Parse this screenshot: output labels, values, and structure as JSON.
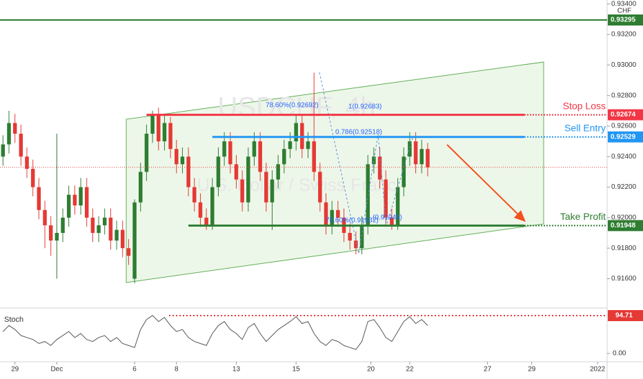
{
  "chart_data": {
    "type": "candlestick",
    "currency_label": "CHF",
    "watermark": {
      "symbol": "USDCHF, 4h",
      "name": "U.S. Dollar / Swiss Franc"
    },
    "ylim": [
      0.91417,
      0.93426
    ],
    "yticks": [
      {
        "value": 0.934,
        "label": "0.93400"
      },
      {
        "value": 0.932,
        "label": "0.93200"
      },
      {
        "value": 0.93,
        "label": "0.93000"
      },
      {
        "value": 0.928,
        "label": "0.92800"
      },
      {
        "value": 0.926,
        "label": "0.92600"
      },
      {
        "value": 0.924,
        "label": "0.92400"
      },
      {
        "value": 0.922,
        "label": "0.92200"
      },
      {
        "value": 0.92,
        "label": "0.92000"
      },
      {
        "value": 0.918,
        "label": "0.91800"
      },
      {
        "value": 0.916,
        "label": "0.91600"
      }
    ],
    "xlim": [
      -0.5,
      101
    ],
    "xticks": [
      {
        "value": 2,
        "label": "29"
      },
      {
        "value": 9,
        "label": "Dec"
      },
      {
        "value": 22,
        "label": "6"
      },
      {
        "value": 29,
        "label": "8"
      },
      {
        "value": 39,
        "label": "13"
      },
      {
        "value": 49,
        "label": "15"
      },
      {
        "value": 61.5,
        "label": "20"
      },
      {
        "value": 68,
        "label": "22"
      },
      {
        "value": 81,
        "label": "27"
      },
      {
        "value": 88.4,
        "label": "29"
      },
      {
        "value": 99.4,
        "label": "2022"
      }
    ],
    "up_color": "#2e7d32",
    "down_color": "#e53935",
    "candles": [
      [
        0.924,
        0.9254,
        0.9234,
        0.9248
      ],
      [
        0.9248,
        0.927,
        0.9242,
        0.9262
      ],
      [
        0.9262,
        0.9268,
        0.9249,
        0.9255
      ],
      [
        0.9255,
        0.9261,
        0.9234,
        0.924
      ],
      [
        0.924,
        0.9246,
        0.9226,
        0.9232
      ],
      [
        0.9232,
        0.9238,
        0.9214,
        0.922
      ],
      [
        0.922,
        0.9226,
        0.9199,
        0.9205
      ],
      [
        0.9205,
        0.9211,
        0.918,
        0.9195
      ],
      [
        0.9195,
        0.9201,
        0.9175,
        0.9185
      ],
      [
        0.9185,
        0.9255,
        0.916,
        0.919
      ],
      [
        0.919,
        0.9206,
        0.9184,
        0.92
      ],
      [
        0.92,
        0.9221,
        0.9194,
        0.9215
      ],
      [
        0.9215,
        0.9221,
        0.9202,
        0.9208
      ],
      [
        0.9208,
        0.9226,
        0.9202,
        0.922
      ],
      [
        0.922,
        0.9226,
        0.9194,
        0.92
      ],
      [
        0.92,
        0.9206,
        0.9184,
        0.919
      ],
      [
        0.919,
        0.9201,
        0.9184,
        0.9195
      ],
      [
        0.9195,
        0.9206,
        0.9189,
        0.92
      ],
      [
        0.92,
        0.9206,
        0.9179,
        0.9185
      ],
      [
        0.9185,
        0.9198,
        0.9179,
        0.9192
      ],
      [
        0.9192,
        0.9198,
        0.9174,
        0.918
      ],
      [
        0.918,
        0.9186,
        0.9169,
        0.9175
      ],
      [
        0.916,
        0.9212,
        0.9157,
        0.921
      ],
      [
        0.921,
        0.9236,
        0.9204,
        0.923
      ],
      [
        0.923,
        0.9261,
        0.9224,
        0.9255
      ],
      [
        0.9255,
        0.927,
        0.9249,
        0.9268
      ],
      [
        0.9268,
        0.9272,
        0.9244,
        0.925
      ],
      [
        0.925,
        0.9268,
        0.9244,
        0.9262
      ],
      [
        0.9262,
        0.9266,
        0.9239,
        0.9245
      ],
      [
        0.9245,
        0.9251,
        0.9229,
        0.9235
      ],
      [
        0.9235,
        0.9246,
        0.9229,
        0.924
      ],
      [
        0.924,
        0.9246,
        0.9214,
        0.922
      ],
      [
        0.922,
        0.9226,
        0.9204,
        0.921
      ],
      [
        0.921,
        0.9216,
        0.9194,
        0.92
      ],
      [
        0.92,
        0.9206,
        0.9192,
        0.9195
      ],
      [
        0.9195,
        0.9226,
        0.9192,
        0.922
      ],
      [
        0.922,
        0.9246,
        0.9214,
        0.924
      ],
      [
        0.924,
        0.9256,
        0.9234,
        0.925
      ],
      [
        0.925,
        0.9256,
        0.9229,
        0.9235
      ],
      [
        0.9235,
        0.9241,
        0.9219,
        0.9225
      ],
      [
        0.9225,
        0.9231,
        0.9204,
        0.921
      ],
      [
        0.921,
        0.9246,
        0.9204,
        0.924
      ],
      [
        0.924,
        0.9256,
        0.9234,
        0.925
      ],
      [
        0.925,
        0.9256,
        0.9224,
        0.923
      ],
      [
        0.923,
        0.9236,
        0.9204,
        0.921
      ],
      [
        0.921,
        0.9231,
        0.9192,
        0.9225
      ],
      [
        0.9225,
        0.9241,
        0.9219,
        0.9235
      ],
      [
        0.9235,
        0.9251,
        0.9229,
        0.9245
      ],
      [
        0.9245,
        0.9256,
        0.9239,
        0.925
      ],
      [
        0.925,
        0.9268,
        0.9244,
        0.9262
      ],
      [
        0.9262,
        0.9268,
        0.9239,
        0.9245
      ],
      [
        0.9245,
        0.9256,
        0.9239,
        0.925
      ],
      [
        0.925,
        0.9295,
        0.9224,
        0.923
      ],
      [
        0.923,
        0.9236,
        0.9204,
        0.921
      ],
      [
        0.921,
        0.9216,
        0.9189,
        0.9195
      ],
      [
        0.9195,
        0.9211,
        0.9189,
        0.9205
      ],
      [
        0.9205,
        0.9211,
        0.9194,
        0.92
      ],
      [
        0.92,
        0.9206,
        0.9184,
        0.919
      ],
      [
        0.919,
        0.9196,
        0.9179,
        0.9185
      ],
      [
        0.9185,
        0.9191,
        0.9176,
        0.918
      ],
      [
        0.918,
        0.9201,
        0.9176,
        0.9195
      ],
      [
        0.9195,
        0.9241,
        0.9189,
        0.9235
      ],
      [
        0.9235,
        0.9246,
        0.9229,
        0.924
      ],
      [
        0.924,
        0.9246,
        0.9219,
        0.9225
      ],
      [
        0.9225,
        0.9231,
        0.9194,
        0.92
      ],
      [
        0.92,
        0.9206,
        0.9192,
        0.9195
      ],
      [
        0.9195,
        0.9226,
        0.9192,
        0.922
      ],
      [
        0.922,
        0.9246,
        0.9214,
        0.924
      ],
      [
        0.924,
        0.9256,
        0.9234,
        0.925
      ],
      [
        0.925,
        0.9256,
        0.9229,
        0.9235
      ],
      [
        0.9235,
        0.9251,
        0.9229,
        0.9245
      ],
      [
        0.9245,
        0.9249,
        0.9227,
        0.9233
      ]
    ],
    "top_level": {
      "value": 0.93295,
      "color": "#2e7d32"
    },
    "levels": [
      {
        "label": "Stop Loss",
        "value": 0.92674,
        "color": "#f23645",
        "start": 24
      },
      {
        "label": "Sell Entry",
        "value": 0.92529,
        "color": "#2196f3",
        "start": 35
      },
      {
        "label": "Take Profit",
        "value": 0.91948,
        "color": "#2e7d32",
        "start": 31
      }
    ],
    "annotations": [
      "78.60%(0.92692)",
      "1(0.92683)",
      "0.786(0.92518)",
      "78.60%(0.91932)",
      "(0.91945)"
    ],
    "stoch": {
      "label": "Stoch",
      "ylim": [
        -20.6,
        108.5
      ],
      "yticks": [
        {
          "value": 0,
          "label": "0.00"
        }
      ],
      "level": 94.71,
      "values": [
        55,
        70,
        60,
        45,
        40,
        35,
        25,
        30,
        20,
        35,
        45,
        55,
        40,
        50,
        35,
        30,
        40,
        45,
        30,
        40,
        25,
        20,
        15,
        60,
        85,
        95,
        80,
        90,
        70,
        55,
        60,
        40,
        30,
        25,
        20,
        50,
        70,
        80,
        60,
        50,
        35,
        65,
        75,
        50,
        30,
        45,
        60,
        70,
        80,
        92,
        75,
        80,
        50,
        30,
        20,
        35,
        30,
        20,
        15,
        10,
        30,
        80,
        85,
        65,
        40,
        30,
        55,
        80,
        92,
        75,
        85,
        70
      ]
    }
  }
}
